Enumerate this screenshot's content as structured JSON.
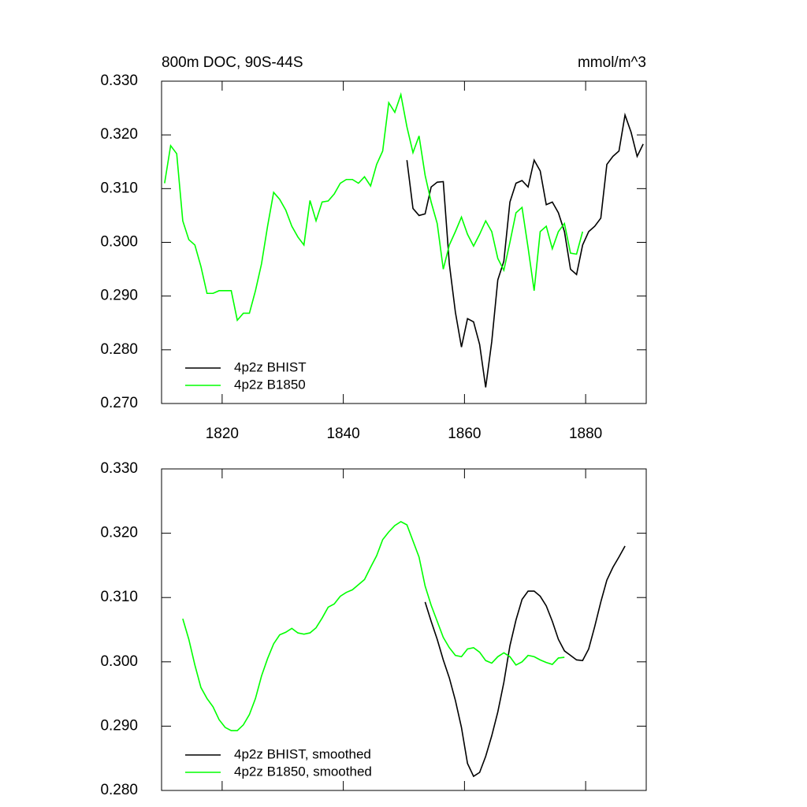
{
  "chart_data": [
    {
      "type": "line",
      "title": "800m DOC, 90S-44S",
      "units": "mmol/m^3",
      "xlim": [
        1810,
        1890
      ],
      "xticks": [
        1820,
        1840,
        1860,
        1880
      ],
      "xtick_labels": true,
      "ylim": [
        0.27,
        0.33
      ],
      "yticks": [
        {
          "value": 0.27,
          "label": "0.270"
        },
        {
          "value": 0.28,
          "label": "0.280"
        },
        {
          "value": 0.29,
          "label": "0.290"
        },
        {
          "value": 0.3,
          "label": "0.300"
        },
        {
          "value": 0.31,
          "label": "0.310"
        },
        {
          "value": 0.32,
          "label": "0.320"
        },
        {
          "value": 0.33,
          "label": "0.330"
        }
      ],
      "legend": "lower left",
      "series": [
        {
          "name": "4p2z BHIST",
          "color": "#000000",
          "x": [
            1850.5,
            1851.5,
            1852.5,
            1853.5,
            1854.5,
            1855.5,
            1856.5,
            1857.5,
            1858.5,
            1859.5,
            1860.5,
            1861.5,
            1862.5,
            1863.5,
            1864.5,
            1865.5,
            1866.5,
            1867.5,
            1868.5,
            1869.5,
            1870.5,
            1871.5,
            1872.5,
            1873.5,
            1874.5,
            1875.5,
            1876.5,
            1877.5,
            1878.5,
            1879.5,
            1880.5,
            1881.5,
            1882.5,
            1883.5,
            1884.5,
            1885.5,
            1886.5,
            1887.5,
            1888.5,
            1889.5
          ],
          "values": [
            0.3153,
            0.3063,
            0.305,
            0.3053,
            0.3103,
            0.3112,
            0.3113,
            0.296,
            0.287,
            0.2805,
            0.2858,
            0.2852,
            0.281,
            0.273,
            0.2815,
            0.293,
            0.2965,
            0.3075,
            0.311,
            0.3115,
            0.3103,
            0.3153,
            0.3133,
            0.307,
            0.3075,
            0.3055,
            0.302,
            0.295,
            0.294,
            0.2995,
            0.302,
            0.303,
            0.3045,
            0.3145,
            0.316,
            0.317,
            0.3237,
            0.3205,
            0.316,
            0.3183
          ]
        },
        {
          "name": "4p2z B1850",
          "color": "#00ff00",
          "x": [
            1810.5,
            1811.5,
            1812.5,
            1813.5,
            1814.5,
            1815.5,
            1816.5,
            1817.5,
            1818.5,
            1819.5,
            1820.5,
            1821.5,
            1822.5,
            1823.5,
            1824.5,
            1825.5,
            1826.5,
            1827.5,
            1828.5,
            1829.5,
            1830.5,
            1831.5,
            1832.5,
            1833.5,
            1834.5,
            1835.5,
            1836.5,
            1837.5,
            1838.5,
            1839.5,
            1840.5,
            1841.5,
            1842.5,
            1843.5,
            1844.5,
            1845.5,
            1846.5,
            1847.5,
            1848.5,
            1849.5,
            1850.5,
            1851.5,
            1852.5,
            1853.5,
            1854.5,
            1855.5,
            1856.5,
            1857.5,
            1858.5,
            1859.5,
            1860.5,
            1861.5,
            1862.5,
            1863.5,
            1864.5,
            1865.5,
            1866.5,
            1867.5,
            1868.5,
            1869.5,
            1870.5,
            1871.5,
            1872.5,
            1873.5,
            1874.5,
            1875.5,
            1876.5,
            1877.5,
            1878.5,
            1879.5
          ],
          "values": [
            0.311,
            0.318,
            0.3165,
            0.304,
            0.3005,
            0.2995,
            0.2955,
            0.2905,
            0.2905,
            0.291,
            0.291,
            0.291,
            0.2855,
            0.2868,
            0.2868,
            0.291,
            0.296,
            0.303,
            0.3093,
            0.308,
            0.306,
            0.303,
            0.301,
            0.2995,
            0.3078,
            0.304,
            0.3075,
            0.3077,
            0.309,
            0.311,
            0.3117,
            0.3117,
            0.311,
            0.3122,
            0.3105,
            0.3145,
            0.317,
            0.326,
            0.3242,
            0.3275,
            0.3215,
            0.3167,
            0.3198,
            0.3125,
            0.3075,
            0.3035,
            0.295,
            0.2995,
            0.302,
            0.3047,
            0.3015,
            0.2993,
            0.3015,
            0.304,
            0.302,
            0.297,
            0.2948,
            0.3,
            0.3055,
            0.3065,
            0.299,
            0.291,
            0.302,
            0.303,
            0.2988,
            0.302,
            0.3035,
            0.298,
            0.2978,
            0.302
          ]
        }
      ]
    },
    {
      "type": "line",
      "xlim": [
        1810,
        1890
      ],
      "xticks": [
        1820,
        1840,
        1860,
        1880
      ],
      "xtick_labels": false,
      "ylim": [
        0.28,
        0.33
      ],
      "yticks": [
        {
          "value": 0.28,
          "label": "0.280"
        },
        {
          "value": 0.29,
          "label": "0.290"
        },
        {
          "value": 0.3,
          "label": "0.300"
        },
        {
          "value": 0.31,
          "label": "0.310"
        },
        {
          "value": 0.32,
          "label": "0.320"
        },
        {
          "value": 0.33,
          "label": "0.330"
        }
      ],
      "legend": "lower left",
      "series": [
        {
          "name": "4p2z BHIST, smoothed",
          "color": "#000000",
          "x": [
            1853.5,
            1854.5,
            1855.5,
            1856.5,
            1857.5,
            1858.5,
            1859.5,
            1860.5,
            1861.5,
            1862.5,
            1863.5,
            1864.5,
            1865.5,
            1866.5,
            1867.5,
            1868.5,
            1869.5,
            1870.5,
            1871.5,
            1872.5,
            1873.5,
            1874.5,
            1875.5,
            1876.5,
            1877.5,
            1878.5,
            1879.5,
            1880.5,
            1881.5,
            1882.5,
            1883.5,
            1884.5,
            1885.5,
            1886.5
          ],
          "values": [
            0.3093,
            0.3063,
            0.3035,
            0.3003,
            0.2975,
            0.294,
            0.2898,
            0.2842,
            0.2822,
            0.2828,
            0.2853,
            0.2885,
            0.2922,
            0.2968,
            0.3025,
            0.3065,
            0.3097,
            0.311,
            0.311,
            0.3102,
            0.3087,
            0.3063,
            0.3035,
            0.3017,
            0.301,
            0.3003,
            0.3002,
            0.302,
            0.3055,
            0.3093,
            0.3127,
            0.3147,
            0.3163,
            0.318
          ]
        },
        {
          "name": "4p2z B1850, smoothed",
          "color": "#00ff00",
          "x": [
            1813.5,
            1814.5,
            1815.5,
            1816.5,
            1817.5,
            1818.5,
            1819.5,
            1820.5,
            1821.5,
            1822.5,
            1823.5,
            1824.5,
            1825.5,
            1826.5,
            1827.5,
            1828.5,
            1829.5,
            1830.5,
            1831.5,
            1832.5,
            1833.5,
            1834.5,
            1835.5,
            1836.5,
            1837.5,
            1838.5,
            1839.5,
            1840.5,
            1841.5,
            1842.5,
            1843.5,
            1844.5,
            1845.5,
            1846.5,
            1847.5,
            1848.5,
            1849.5,
            1850.5,
            1851.5,
            1852.5,
            1853.5,
            1854.5,
            1855.5,
            1856.5,
            1857.5,
            1858.5,
            1859.5,
            1860.5,
            1861.5,
            1862.5,
            1863.5,
            1864.5,
            1865.5,
            1866.5,
            1867.5,
            1868.5,
            1869.5,
            1870.5,
            1871.5,
            1872.5,
            1873.5,
            1874.5,
            1875.5,
            1876.5
          ],
          "values": [
            0.3067,
            0.3035,
            0.2995,
            0.296,
            0.2943,
            0.293,
            0.291,
            0.2898,
            0.2893,
            0.2893,
            0.2902,
            0.2918,
            0.2943,
            0.2978,
            0.3005,
            0.3028,
            0.3042,
            0.3046,
            0.3052,
            0.3045,
            0.3043,
            0.3045,
            0.3053,
            0.3068,
            0.3085,
            0.309,
            0.3102,
            0.3108,
            0.3112,
            0.312,
            0.3128,
            0.3147,
            0.3165,
            0.319,
            0.3202,
            0.3212,
            0.3218,
            0.3213,
            0.3188,
            0.3163,
            0.3118,
            0.3088,
            0.3063,
            0.3038,
            0.3022,
            0.301,
            0.3008,
            0.302,
            0.3022,
            0.3015,
            0.3002,
            0.2998,
            0.3008,
            0.3014,
            0.3008,
            0.2995,
            0.3,
            0.301,
            0.3008,
            0.3003,
            0.2999,
            0.2996,
            0.3006,
            0.3007
          ]
        }
      ]
    }
  ]
}
